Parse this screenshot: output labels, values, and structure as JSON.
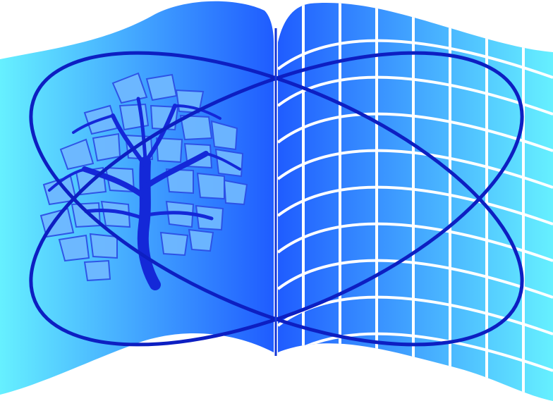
{
  "logo": {
    "subject": "open-book-with-tree-and-grid",
    "icons": [
      "book-icon",
      "tree-icon",
      "grid-icon",
      "orbit-icon"
    ],
    "colors": {
      "background": "#ffffff",
      "page_light": "#66f0ff",
      "page_dark": "#1f5cff",
      "grid_lines": "#ffffff",
      "orbit": "#0d1fc2",
      "tree_trunk": "#1428d8",
      "tree_leaves": "#6fb8ff",
      "leaf_outline": "#2d50e6"
    }
  }
}
